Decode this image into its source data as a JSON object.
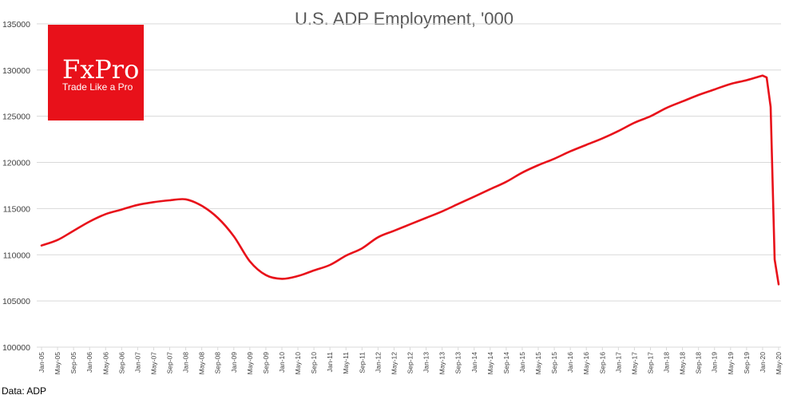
{
  "chart_data": {
    "type": "line",
    "title": "U.S. ADP Employment, '000",
    "xlabel": "",
    "ylabel": "",
    "ylim": [
      100000,
      137500
    ],
    "yticks": [
      100000,
      105000,
      110000,
      115000,
      120000,
      125000,
      130000,
      135000
    ],
    "grid": true,
    "legend": "none",
    "color": "#e8111a",
    "x_start": "Jan-05",
    "x_end": "May-20",
    "xtick_step_months": 4,
    "xticks": [
      "Jan-05",
      "May-05",
      "Sep-05",
      "Jan-06",
      "May-06",
      "Sep-06",
      "Jan-07",
      "May-07",
      "Sep-07",
      "Jan-08",
      "May-08",
      "Sep-08",
      "Jan-09",
      "May-09",
      "Sep-09",
      "Jan-10",
      "May-10",
      "Sep-10",
      "Jan-11",
      "May-11",
      "Sep-11",
      "Jan-12",
      "May-12",
      "Sep-12",
      "Jan-13",
      "May-13",
      "Sep-13",
      "Jan-14",
      "May-14",
      "Sep-14",
      "Jan-15",
      "May-15",
      "Sep-15",
      "Jan-16",
      "May-16",
      "Sep-16",
      "Jan-17",
      "May-17",
      "Sep-17",
      "Jan-18",
      "May-18",
      "Sep-18",
      "Jan-19",
      "May-19",
      "Sep-19",
      "Jan-20",
      "May-20"
    ],
    "series": [
      {
        "name": "",
        "points": [
          [
            "Jan-05",
            111000
          ],
          [
            "May-05",
            111600
          ],
          [
            "Sep-05",
            112600
          ],
          [
            "Jan-06",
            113600
          ],
          [
            "May-06",
            114400
          ],
          [
            "Sep-06",
            114900
          ],
          [
            "Jan-07",
            115400
          ],
          [
            "May-07",
            115700
          ],
          [
            "Sep-07",
            115900
          ],
          [
            "Jan-08",
            116000
          ],
          [
            "May-08",
            115300
          ],
          [
            "Sep-08",
            114000
          ],
          [
            "Jan-09",
            112000
          ],
          [
            "May-09",
            109300
          ],
          [
            "Sep-09",
            107800
          ],
          [
            "Jan-10",
            107400
          ],
          [
            "May-10",
            107700
          ],
          [
            "Sep-10",
            108300
          ],
          [
            "Jan-11",
            108900
          ],
          [
            "May-11",
            109900
          ],
          [
            "Sep-11",
            110700
          ],
          [
            "Jan-12",
            111900
          ],
          [
            "May-12",
            112600
          ],
          [
            "Sep-12",
            113300
          ],
          [
            "Jan-13",
            114000
          ],
          [
            "May-13",
            114700
          ],
          [
            "Sep-13",
            115500
          ],
          [
            "Jan-14",
            116300
          ],
          [
            "May-14",
            117100
          ],
          [
            "Sep-14",
            117900
          ],
          [
            "Jan-15",
            118900
          ],
          [
            "May-15",
            119700
          ],
          [
            "Sep-15",
            120400
          ],
          [
            "Jan-16",
            121200
          ],
          [
            "May-16",
            121900
          ],
          [
            "Sep-16",
            122600
          ],
          [
            "Jan-17",
            123400
          ],
          [
            "May-17",
            124300
          ],
          [
            "Sep-17",
            125000
          ],
          [
            "Jan-18",
            125900
          ],
          [
            "May-18",
            126600
          ],
          [
            "Sep-18",
            127300
          ],
          [
            "Jan-19",
            127900
          ],
          [
            "May-19",
            128500
          ],
          [
            "Sep-19",
            128900
          ],
          [
            "Jan-20",
            129400
          ],
          [
            "Feb-20",
            129200
          ],
          [
            "Mar-20",
            126000
          ],
          [
            "Apr-20",
            109500
          ],
          [
            "May-20",
            106800
          ]
        ]
      }
    ]
  },
  "logo": {
    "brand": "FxPro",
    "tagline": "Trade Like a Pro",
    "background": "#e8111a",
    "text_color": "#ffffff"
  },
  "source": "Data: ADP"
}
